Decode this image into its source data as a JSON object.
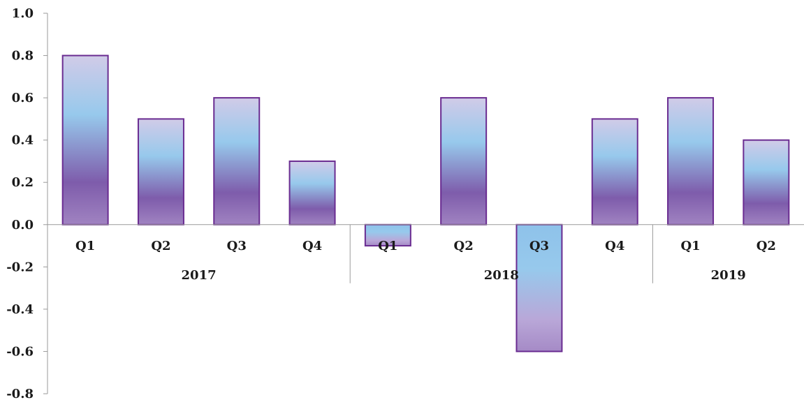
{
  "chart_data": {
    "type": "bar",
    "title": "",
    "xlabel": "",
    "ylabel": "",
    "ylim": [
      -0.8,
      1.0
    ],
    "y_ticks": [
      1.0,
      0.8,
      0.6,
      0.4,
      0.2,
      0.0,
      -0.2,
      -0.4,
      -0.6,
      -0.8
    ],
    "y_tick_labels": [
      "1.0",
      "0.8",
      "0.6",
      "0.4",
      "0.2",
      "0.0",
      "-0.2",
      "-0.4",
      "-0.6",
      "-0.8"
    ],
    "categories": [
      "Q1",
      "Q2",
      "Q3",
      "Q4",
      "Q1",
      "Q2",
      "Q3",
      "Q4",
      "Q1",
      "Q2"
    ],
    "groups": [
      {
        "label": "2017",
        "count": 4
      },
      {
        "label": "2018",
        "count": 4
      },
      {
        "label": "2019",
        "count": 2
      }
    ],
    "values": [
      0.8,
      0.5,
      0.6,
      0.3,
      -0.1,
      0.6,
      -0.6,
      0.5,
      0.6,
      0.4
    ],
    "grid": false,
    "legend": "none",
    "colors": {
      "bar_top": "#c9c3e6",
      "bar_mid_light": "#92c9ee",
      "bar_mid_dark": "#7a5aa8",
      "bar_bottom": "#9a7dbd",
      "bar_border": "#6a2c91",
      "axis": "#9a9a9a"
    }
  }
}
